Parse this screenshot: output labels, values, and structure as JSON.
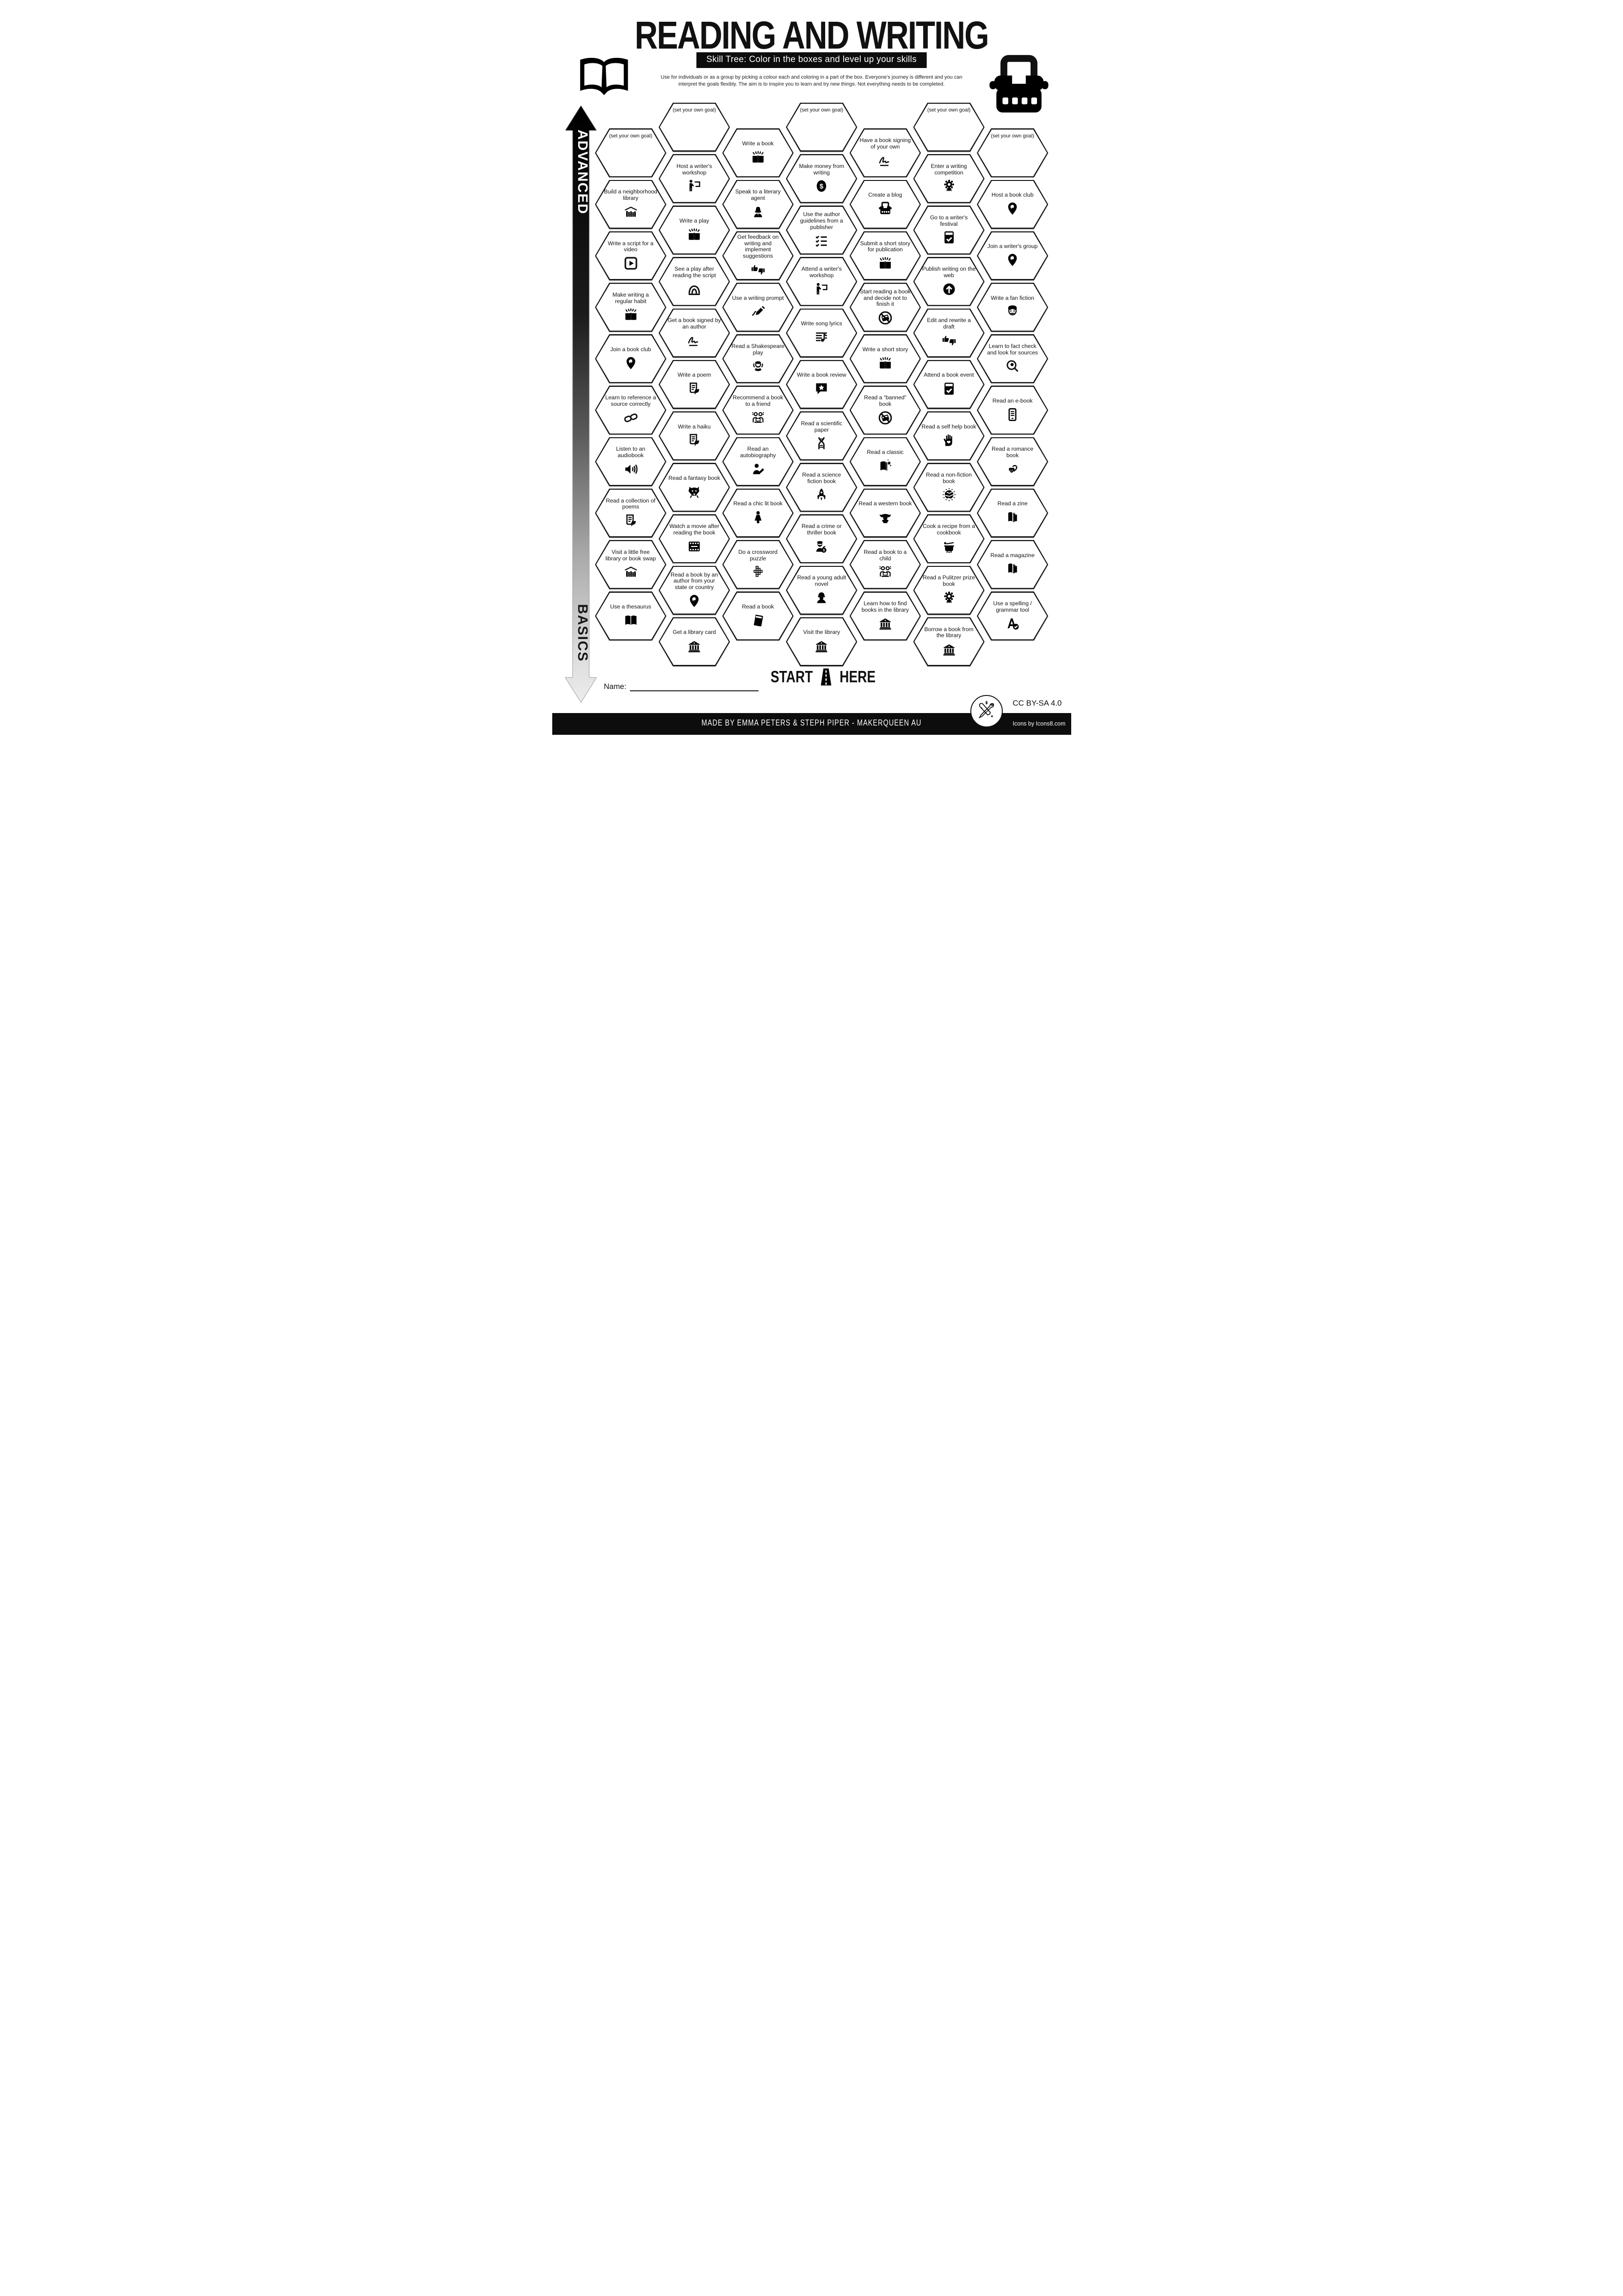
{
  "header": {
    "title": "READING AND WRITING",
    "subtitle": "Skill Tree:  Color in the boxes and level up your skills",
    "description_line1": "Use for individuals or as a group by picking a colour each and coloring in a part of the box.  Everyone's journey is different and you can",
    "description_line2": "interpret the goals flexibly.  The aim is to inspire you to learn and try new things. Not everything needs to be completed.",
    "left_icon": "open-book-icon",
    "right_icon": "typewriter-icon"
  },
  "axis": {
    "top_label": "ADVANCED",
    "bottom_label": "BASICS"
  },
  "colors": {
    "ink": "#111111",
    "paper": "#ffffff"
  },
  "grid": {
    "hexes": [
      {
        "col": 0,
        "row": 0,
        "label": "(set your own goal)",
        "icon": null
      },
      {
        "col": 0,
        "row": 1,
        "label": "Build a neighborhood library",
        "icon": "little-library"
      },
      {
        "col": 0,
        "row": 2,
        "label": "Write a script for a video",
        "icon": "play-button"
      },
      {
        "col": 0,
        "row": 3,
        "label": "Make writing a regular habit",
        "icon": "book-sparks"
      },
      {
        "col": 0,
        "row": 4,
        "label": "Join a book club",
        "icon": "map-pin"
      },
      {
        "col": 0,
        "row": 5,
        "label": "Learn to reference a source correctly",
        "icon": "chain-link"
      },
      {
        "col": 0,
        "row": 6,
        "label": "Listen to an audiobook",
        "icon": "speaker"
      },
      {
        "col": 0,
        "row": 7,
        "label": "Read a collection of poems",
        "icon": "poem-quill"
      },
      {
        "col": 0,
        "row": 8,
        "label": "Visit a little free library or book swap",
        "icon": "little-library"
      },
      {
        "col": 0,
        "row": 9,
        "label": "Use a thesaurus",
        "icon": "open-book"
      },
      {
        "col": 1,
        "row": 0,
        "label": "(set your own goal)",
        "icon": null
      },
      {
        "col": 1,
        "row": 1,
        "label": "Host a writer's workshop",
        "icon": "presenter"
      },
      {
        "col": 1,
        "row": 2,
        "label": "Write a play",
        "icon": "book-sparks"
      },
      {
        "col": 1,
        "row": 3,
        "label": "See a play after reading the script",
        "icon": "theater-dome"
      },
      {
        "col": 1,
        "row": 4,
        "label": "Get a book signed by an author",
        "icon": "signature"
      },
      {
        "col": 1,
        "row": 5,
        "label": "Write a poem",
        "icon": "poem-quill"
      },
      {
        "col": 1,
        "row": 6,
        "label": "Write a haiku",
        "icon": "poem-quill"
      },
      {
        "col": 1,
        "row": 7,
        "label": "Read a fantasy book",
        "icon": "dragon"
      },
      {
        "col": 1,
        "row": 8,
        "label": "Watch a movie after reading the book",
        "icon": "film-strip"
      },
      {
        "col": 1,
        "row": 9,
        "label": "Read a book by an author from your state or country",
        "icon": "map-pin"
      },
      {
        "col": 1,
        "row": 10,
        "label": "Get a library card",
        "icon": "library-building"
      },
      {
        "col": 2,
        "row": 0,
        "label": "Write a book",
        "icon": "book-sparks"
      },
      {
        "col": 2,
        "row": 1,
        "label": "Speak to a literary agent",
        "icon": "woman-agent"
      },
      {
        "col": 2,
        "row": 2,
        "label": "Get feedback on writing and implement suggestions",
        "icon": "thumbs-feedback"
      },
      {
        "col": 2,
        "row": 3,
        "label": "Use a writing prompt",
        "icon": "writing-pen"
      },
      {
        "col": 2,
        "row": 4,
        "label": "Read a Shakespeare play",
        "icon": "shakespeare"
      },
      {
        "col": 2,
        "row": 5,
        "label": "Recommend a book to a friend",
        "icon": "friends-laptop"
      },
      {
        "col": 2,
        "row": 6,
        "label": "Read an autobiography",
        "icon": "person-pencil"
      },
      {
        "col": 2,
        "row": 7,
        "label": "Read a chic lit book",
        "icon": "woman-dress"
      },
      {
        "col": 2,
        "row": 8,
        "label": "Do a crossword puzzle",
        "icon": "crossword"
      },
      {
        "col": 2,
        "row": 9,
        "label": "Read a book",
        "icon": "closed-book"
      },
      {
        "col": 3,
        "row": 0,
        "label": "(set your own goal)",
        "icon": null
      },
      {
        "col": 3,
        "row": 1,
        "label": "Make money from writing",
        "icon": "dollar-coin"
      },
      {
        "col": 3,
        "row": 2,
        "label": "Use the author guidelines from a publisher",
        "icon": "checklist"
      },
      {
        "col": 3,
        "row": 3,
        "label": "Attend a writer's workshop",
        "icon": "presenter"
      },
      {
        "col": 3,
        "row": 4,
        "label": "Write song lyrics",
        "icon": "music-lyrics"
      },
      {
        "col": 3,
        "row": 5,
        "label": "Write a book review",
        "icon": "review-star"
      },
      {
        "col": 3,
        "row": 6,
        "label": "Read a scientific paper",
        "icon": "dna"
      },
      {
        "col": 3,
        "row": 7,
        "label": "Read a science fiction book",
        "icon": "rocket"
      },
      {
        "col": 3,
        "row": 8,
        "label": "Read a crime or thriller book",
        "icon": "burglar-bag"
      },
      {
        "col": 3,
        "row": 9,
        "label": "Read a young adult novel",
        "icon": "cap-person"
      },
      {
        "col": 3,
        "row": 10,
        "label": "Visit the library",
        "icon": "library-building"
      },
      {
        "col": 4,
        "row": 0,
        "label": "Have a book signing of your own",
        "icon": "signature"
      },
      {
        "col": 4,
        "row": 1,
        "label": "Create a blog",
        "icon": "typewriter-small"
      },
      {
        "col": 4,
        "row": 2,
        "label": "Submit a short story for publication",
        "icon": "book-sparks"
      },
      {
        "col": 4,
        "row": 3,
        "label": "Start reading a book and decide not to finish it",
        "icon": "banned-book"
      },
      {
        "col": 4,
        "row": 4,
        "label": "Write a short story",
        "icon": "book-sparks"
      },
      {
        "col": 4,
        "row": 5,
        "label": "Read a “banned” book",
        "icon": "banned-book"
      },
      {
        "col": 4,
        "row": 6,
        "label": "Read a classic",
        "icon": "classic-sparkle"
      },
      {
        "col": 4,
        "row": 7,
        "label": "Read a western book",
        "icon": "cowboy"
      },
      {
        "col": 4,
        "row": 8,
        "label": "Read a book to a child",
        "icon": "friends-laptop"
      },
      {
        "col": 4,
        "row": 9,
        "label": "Learn how to find books in the library",
        "icon": "library-building"
      },
      {
        "col": 5,
        "row": 0,
        "label": "(set your own goal)",
        "icon": null
      },
      {
        "col": 5,
        "row": 1,
        "label": "Enter a writing competition",
        "icon": "award-rosette"
      },
      {
        "col": 5,
        "row": 2,
        "label": "Go to a writer's festival",
        "icon": "book-check"
      },
      {
        "col": 5,
        "row": 3,
        "label": "Publish writing on the web",
        "icon": "upload-web"
      },
      {
        "col": 5,
        "row": 4,
        "label": "Edit and rewrite a draft",
        "icon": "thumbs-feedback"
      },
      {
        "col": 5,
        "row": 5,
        "label": "Attend a book event",
        "icon": "book-check"
      },
      {
        "col": 5,
        "row": 6,
        "label": "Read a self help book",
        "icon": "hand-heart"
      },
      {
        "col": 5,
        "row": 7,
        "label": "Read a non-fiction book",
        "icon": "globe-dots"
      },
      {
        "col": 5,
        "row": 8,
        "label": "Cook a recipe from a cookbook",
        "icon": "cooking-pot"
      },
      {
        "col": 5,
        "row": 9,
        "label": "Read a Pulitzer prize book",
        "icon": "award-rosette"
      },
      {
        "col": 5,
        "row": 10,
        "label": "Borrow a book from the library",
        "icon": "library-building"
      },
      {
        "col": 6,
        "row": 0,
        "label": "(set your own goal)",
        "icon": null
      },
      {
        "col": 6,
        "row": 1,
        "label": "Host a book club",
        "icon": "map-pin"
      },
      {
        "col": 6,
        "row": 2,
        "label": "Join a writer's group",
        "icon": "map-pin"
      },
      {
        "col": 6,
        "row": 3,
        "label": "Write a fan fiction",
        "icon": "vampire"
      },
      {
        "col": 6,
        "row": 4,
        "label": "Learn to fact check and look for sources",
        "icon": "magnifier-eye"
      },
      {
        "col": 6,
        "row": 5,
        "label": "Read an e-book",
        "icon": "ereader"
      },
      {
        "col": 6,
        "row": 6,
        "label": "Read a romance book",
        "icon": "romance-hearts"
      },
      {
        "col": 6,
        "row": 7,
        "label": "Read a zine",
        "icon": "zine-mag"
      },
      {
        "col": 6,
        "row": 8,
        "label": "Read a magazine",
        "icon": "zine-mag"
      },
      {
        "col": 6,
        "row": 9,
        "label": "Use a spelling / grammar tool",
        "icon": "spelling-check"
      }
    ]
  },
  "start": {
    "label_left": "START",
    "label_right": "HERE",
    "icon": "road-icon"
  },
  "name_field": {
    "label": "Name:",
    "value": ""
  },
  "footer": {
    "credit": "MADE BY EMMA PETERS & STEPH PIPER  -  MAKERQUEEN AU",
    "license": "CC BY-SA 4.0",
    "icons_credit": "Icons by Icons8.com",
    "logo": "maker-tools-logo"
  }
}
